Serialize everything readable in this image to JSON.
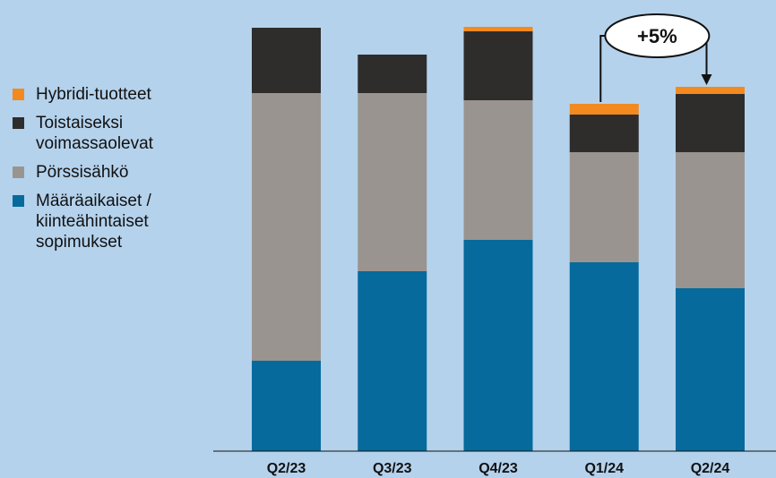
{
  "colors": {
    "background": "#b4d2ec",
    "Hybridi-tuotteet": "#f28a1f",
    "Toistaiseksi voimassaolevat": "#2e2d2c",
    "Pörssisähkö": "#9a9490",
    "Määräaikaiset / kiinteähintaiset sopimukset": "#066a9c"
  },
  "legend": [
    {
      "label": "Hybridi-tuotteet",
      "color": "#f28a1f"
    },
    {
      "label": "Toistaiseksi\nvoimassaolevat",
      "color": "#2e2d2c"
    },
    {
      "label": "Pörssisähkö",
      "color": "#9a9490"
    },
    {
      "label": "Määräaikaiset /\nkiinteähintaiset\nsopimukset",
      "color": "#066a9c"
    }
  ],
  "chart_data": {
    "type": "bar",
    "stacked": true,
    "categories": [
      "Q2/23",
      "Q3/23",
      "Q4/23",
      "Q1/24",
      "Q2/24"
    ],
    "series": [
      {
        "name": "Määräaikaiset / kiinteähintaiset sopimukset",
        "color": "#066a9c",
        "values": [
          101,
          201,
          236,
          211,
          182
        ]
      },
      {
        "name": "Pörssisähkö",
        "color": "#9a9490",
        "values": [
          299,
          199,
          156,
          123,
          152
        ]
      },
      {
        "name": "Toistaiseksi voimassaolevat",
        "color": "#2e2d2c",
        "values": [
          73,
          43,
          77,
          42,
          65
        ]
      },
      {
        "name": "Hybridi-tuotteet",
        "color": "#f28a1f",
        "values": [
          0,
          0,
          5,
          12,
          8
        ]
      }
    ],
    "ylim": [
      0,
      480
    ],
    "grid": false,
    "legend_position": "left",
    "annotation": {
      "text": "+5%",
      "from": "Q1/24",
      "to": "Q2/24"
    }
  }
}
